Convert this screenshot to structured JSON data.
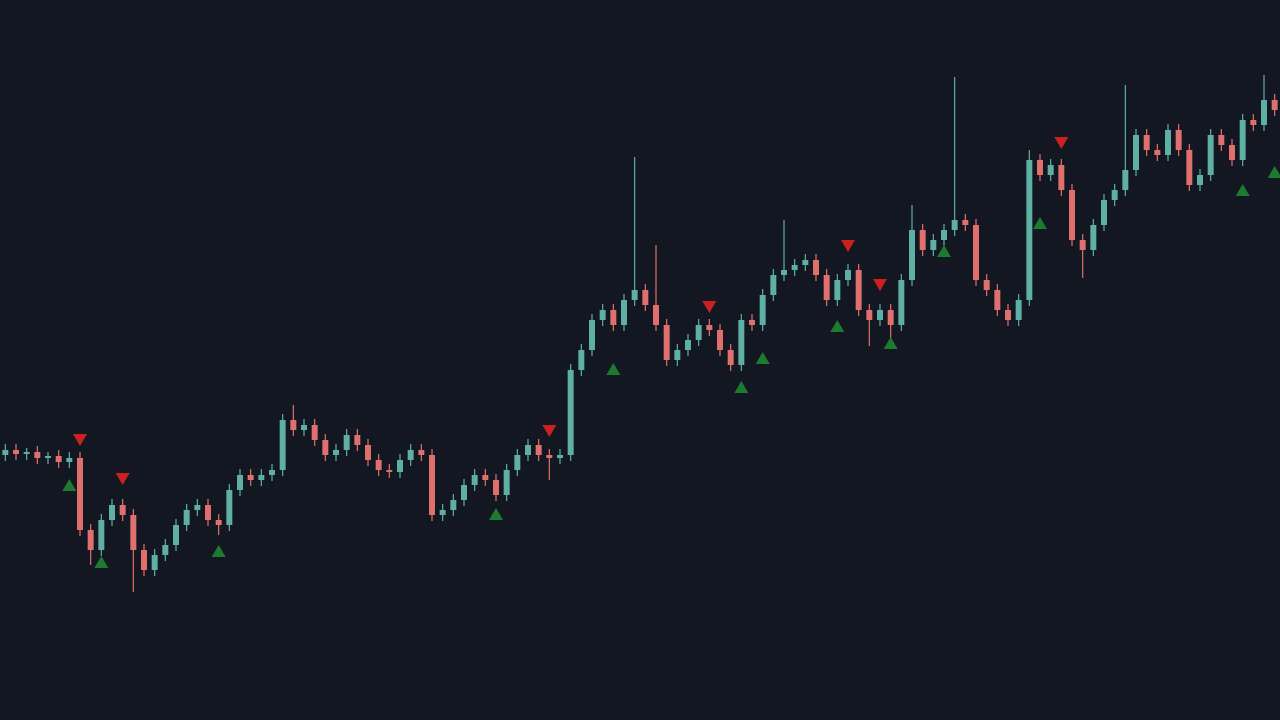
{
  "chart_data": {
    "type": "candlestick",
    "up_color": "#5fb0a4",
    "down_color": "#e0706e",
    "buy_color": "#1e7a30",
    "sell_color": "#cc1f1f",
    "ylim": [
      0,
      720
    ],
    "open": [
      265,
      270,
      266,
      268,
      262,
      264,
      258,
      262,
      190,
      170,
      200,
      215,
      205,
      170,
      150,
      165,
      175,
      195,
      210,
      215,
      200,
      195,
      230,
      245,
      240,
      245,
      250,
      300,
      290,
      295,
      280,
      265,
      270,
      285,
      275,
      260,
      250,
      248,
      260,
      270,
      265,
      205,
      210,
      220,
      235,
      245,
      240,
      225,
      250,
      265,
      275,
      265,
      262,
      265,
      350,
      370,
      400,
      410,
      395,
      420,
      430,
      415,
      395,
      360,
      370,
      380,
      395,
      390,
      370,
      355,
      400,
      395,
      425,
      445,
      450,
      455,
      460,
      445,
      420,
      440,
      450,
      410,
      400,
      410,
      395,
      440,
      490,
      470,
      480,
      490,
      500,
      495,
      440,
      430,
      410,
      400,
      420,
      560,
      545,
      555,
      530,
      480,
      470,
      495,
      520,
      530,
      550,
      585,
      570,
      565,
      590,
      570,
      535,
      545,
      585,
      575,
      560,
      600,
      595,
      620
    ],
    "high": [
      276,
      276,
      272,
      274,
      268,
      270,
      268,
      268,
      196,
      206,
      221,
      221,
      211,
      176,
      171,
      181,
      201,
      216,
      221,
      221,
      206,
      236,
      251,
      251,
      251,
      256,
      306,
      315,
      301,
      301,
      286,
      276,
      291,
      291,
      281,
      266,
      256,
      266,
      276,
      276,
      271,
      216,
      226,
      241,
      251,
      251,
      246,
      256,
      271,
      281,
      281,
      271,
      271,
      356,
      376,
      406,
      416,
      416,
      426,
      563,
      436,
      475,
      401,
      376,
      386,
      401,
      401,
      396,
      376,
      406,
      406,
      431,
      451,
      500,
      461,
      466,
      466,
      451,
      446,
      456,
      456,
      416,
      416,
      416,
      446,
      515,
      496,
      486,
      496,
      643,
      506,
      501,
      446,
      436,
      416,
      426,
      570,
      566,
      561,
      561,
      536,
      486,
      501,
      526,
      536,
      635,
      591,
      591,
      576,
      596,
      596,
      576,
      551,
      591,
      591,
      581,
      606,
      606,
      645,
      626
    ],
    "low": [
      259,
      260,
      260,
      256,
      256,
      252,
      252,
      184,
      155,
      164,
      194,
      199,
      128,
      144,
      144,
      159,
      169,
      189,
      204,
      194,
      185,
      189,
      224,
      234,
      234,
      239,
      244,
      284,
      284,
      274,
      259,
      259,
      264,
      269,
      254,
      244,
      242,
      242,
      254,
      259,
      199,
      199,
      204,
      214,
      229,
      234,
      219,
      219,
      244,
      259,
      259,
      240,
      256,
      259,
      344,
      364,
      394,
      389,
      389,
      414,
      409,
      389,
      354,
      354,
      364,
      374,
      384,
      364,
      349,
      349,
      389,
      389,
      419,
      439,
      444,
      449,
      439,
      414,
      414,
      434,
      404,
      374,
      394,
      380,
      389,
      434,
      464,
      464,
      474,
      484,
      489,
      434,
      424,
      404,
      394,
      394,
      414,
      539,
      539,
      524,
      474,
      442,
      464,
      489,
      514,
      524,
      544,
      564,
      559,
      559,
      564,
      529,
      529,
      539,
      569,
      554,
      554,
      589,
      589,
      604
    ],
    "close": [
      270,
      266,
      268,
      262,
      264,
      258,
      262,
      190,
      170,
      200,
      215,
      205,
      170,
      150,
      165,
      175,
      195,
      210,
      215,
      200,
      195,
      230,
      245,
      240,
      245,
      250,
      300,
      290,
      295,
      280,
      265,
      270,
      285,
      275,
      260,
      250,
      248,
      260,
      270,
      265,
      205,
      210,
      220,
      235,
      245,
      240,
      225,
      250,
      265,
      275,
      265,
      262,
      265,
      350,
      370,
      400,
      410,
      395,
      420,
      430,
      415,
      395,
      360,
      370,
      380,
      395,
      390,
      370,
      355,
      400,
      395,
      425,
      445,
      450,
      455,
      460,
      445,
      420,
      440,
      450,
      410,
      400,
      410,
      395,
      440,
      490,
      470,
      480,
      490,
      500,
      495,
      440,
      430,
      410,
      400,
      420,
      560,
      545,
      555,
      530,
      480,
      470,
      495,
      520,
      530,
      550,
      585,
      570,
      565,
      590,
      570,
      535,
      545,
      585,
      575,
      560,
      600,
      595,
      620,
      610
    ],
    "buy_signals": [
      {
        "index": 6,
        "value": 235
      },
      {
        "index": 9,
        "value": 158
      },
      {
        "index": 20,
        "value": 169
      },
      {
        "index": 46,
        "value": 206
      },
      {
        "index": 57,
        "value": 351
      },
      {
        "index": 69,
        "value": 333
      },
      {
        "index": 71,
        "value": 362
      },
      {
        "index": 78,
        "value": 394
      },
      {
        "index": 83,
        "value": 377
      },
      {
        "index": 88,
        "value": 469
      },
      {
        "index": 97,
        "value": 497
      },
      {
        "index": 116,
        "value": 530
      },
      {
        "index": 119,
        "value": 548
      }
    ],
    "sell_signals": [
      {
        "index": 7,
        "value": 280
      },
      {
        "index": 11,
        "value": 241
      },
      {
        "index": 51,
        "value": 289
      },
      {
        "index": 66,
        "value": 413
      },
      {
        "index": 79,
        "value": 474
      },
      {
        "index": 82,
        "value": 435
      },
      {
        "index": 99,
        "value": 577
      }
    ]
  }
}
